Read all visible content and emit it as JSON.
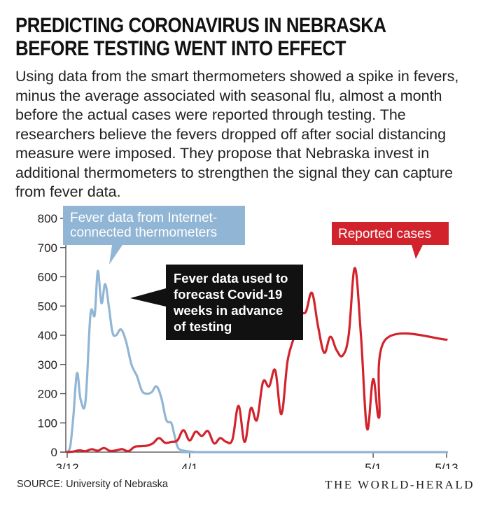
{
  "header": {
    "title_line1": "PREDICTING CORONAVIRUS IN NEBRASKA",
    "title_line2": "BEFORE TESTING WENT INTO EFFECT",
    "subtitle": "Using data from the smart thermometers showed a spike in fevers, minus the average associated with seasonal flu, almost a month before the actual cases were reported through testing. The researchers believe the fevers dropped off after social distancing measure were imposed. They propose that Nebraska invest in additional thermometers to strengthen the signal they can capture from fever data."
  },
  "footer": {
    "source": "SOURCE: University of Nebraska",
    "brand": "THE WORLD-HERALD"
  },
  "colors": {
    "fever": "#91b5d4",
    "cases": "#d2232d",
    "callout": "#111111",
    "axis": "#444444"
  },
  "chart_data": {
    "type": "line",
    "x_tick_labels": [
      "3/12",
      "4/1",
      "5/1",
      "5/13"
    ],
    "x_tick_days": [
      0,
      20,
      50,
      62
    ],
    "y_ticks": [
      0,
      100,
      200,
      300,
      400,
      500,
      600,
      700,
      800
    ],
    "ylim": [
      0,
      800
    ],
    "xlim_days": [
      0,
      62
    ],
    "x_start_label": "3/12",
    "annotations": {
      "fever_label_line1": "Fever data from Internet-",
      "fever_label_line2": "connected thermometers",
      "cases_label": "Reported cases",
      "callout_line1": "Fever data used to",
      "callout_line2": "forecast Covid-19",
      "callout_line3": "weeks in advance",
      "callout_line4": "of testing"
    },
    "series": [
      {
        "name": "Fever data from Internet-connected thermometers",
        "x_days": [
          0,
          0.5,
          1,
          1.6,
          2.2,
          3,
          3.8,
          4.5,
          5,
          5.6,
          6.2,
          6.8,
          7.4,
          8,
          8.8,
          9.6,
          10.5,
          11.4,
          12.2,
          13,
          13.8,
          14.6,
          15.4,
          16.2,
          17,
          17.5,
          18,
          18.5,
          19.3,
          20,
          20.6,
          21.3,
          22,
          62
        ],
        "values": [
          0,
          20,
          120,
          270,
          180,
          175,
          470,
          470,
          620,
          510,
          575,
          500,
          410,
          400,
          420,
          380,
          300,
          260,
          210,
          200,
          205,
          225,
          185,
          110,
          100,
          60,
          20,
          8,
          4,
          2,
          1,
          0,
          0,
          0
        ]
      },
      {
        "name": "Reported cases",
        "x_days": [
          0,
          1,
          2,
          3,
          4,
          5,
          6,
          7,
          8,
          9,
          10,
          11,
          12,
          13,
          14,
          15,
          16,
          17,
          18,
          19,
          20,
          21,
          22,
          23,
          24,
          25,
          26,
          27,
          28,
          29,
          30,
          31,
          32,
          33,
          34,
          35,
          36,
          37,
          38,
          39,
          40,
          41,
          42,
          43,
          44,
          45,
          46,
          47,
          48,
          49,
          50,
          51,
          52,
          53,
          54,
          55,
          56,
          57,
          58,
          59,
          60,
          61,
          62
        ],
        "values": [
          0,
          2,
          6,
          3,
          10,
          5,
          14,
          4,
          6,
          10,
          3,
          18,
          20,
          22,
          30,
          48,
          32,
          35,
          40,
          75,
          40,
          70,
          55,
          72,
          30,
          48,
          35,
          43,
          158,
          35,
          150,
          110,
          240,
          225,
          280,
          130,
          310,
          390,
          470,
          480,
          545,
          430,
          340,
          395,
          350,
          330,
          400,
          630,
          400,
          80,
          250,
          120,
          385,
          385,
          385,
          385,
          385,
          385,
          385,
          385,
          385,
          385,
          385
        ]
      }
    ]
  }
}
